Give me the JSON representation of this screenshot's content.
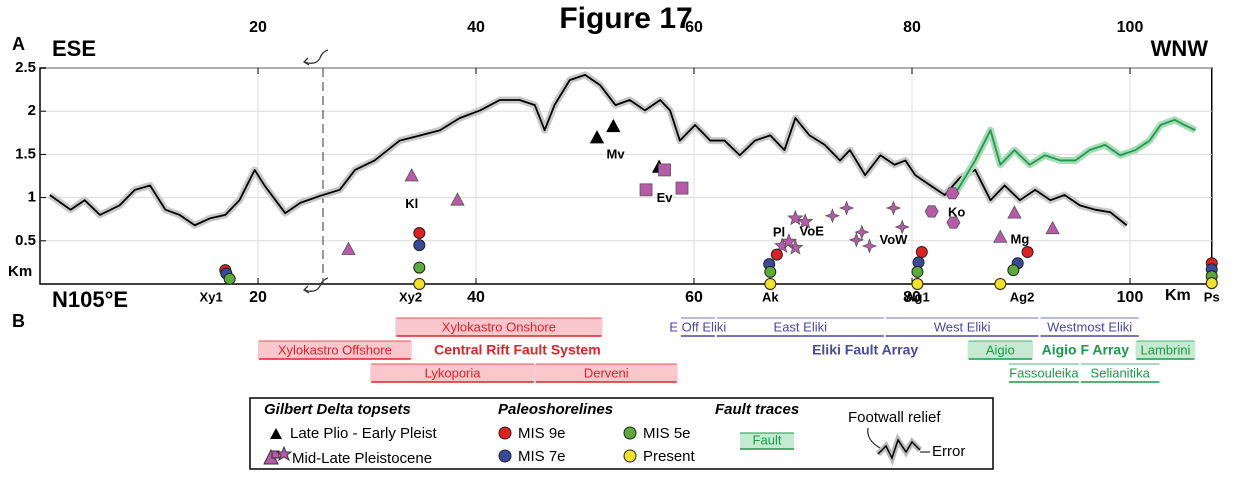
{
  "chart_data": {
    "type": "line",
    "title": "Figure 17",
    "panel_labels": [
      "A",
      "B"
    ],
    "top_left": "ESE",
    "top_right": "WNW",
    "bottom_left": "N105°E",
    "x_unit": "Km",
    "y_unit": "Km",
    "xlim": [
      0,
      107.5
    ],
    "ylim": [
      0,
      2.5
    ],
    "xticks": [
      20,
      40,
      60,
      80,
      100
    ],
    "yticks": [
      0.5,
      1,
      1.5,
      2,
      2.5
    ],
    "grid": true,
    "series": [
      {
        "color": "#000000",
        "x": [
          0.9,
          2.8,
          4.1,
          5.5,
          7.3,
          8.7,
          10.1,
          11.5,
          12.8,
          14.2,
          15.6,
          17.0,
          18.3,
          19.7,
          20.6,
          22.5,
          23.9,
          25.7,
          27.5,
          28.9,
          30.7,
          33.0,
          34.9,
          36.7,
          38.5,
          40.4,
          42.2,
          44.0,
          45.4,
          46.3,
          47.2,
          48.6,
          50.0,
          51.4,
          52.8,
          54.1,
          55.5,
          56.9,
          57.8,
          58.7,
          60.1,
          61.5,
          62.8,
          64.2,
          65.6,
          67.0,
          68.3,
          69.3,
          70.6,
          72.0,
          73.4,
          74.3,
          75.7,
          77.1,
          78.4,
          79.4,
          80.3,
          81.7,
          83.0,
          84.4,
          85.8,
          87.2,
          88.5,
          89.9,
          91.3,
          92.7,
          94.0,
          95.4,
          96.8,
          98.2,
          99.7
        ],
        "values": [
          1.03,
          0.86,
          0.97,
          0.8,
          0.91,
          1.09,
          1.14,
          0.86,
          0.8,
          0.68,
          0.76,
          0.8,
          0.97,
          1.32,
          1.14,
          0.82,
          0.94,
          1.02,
          1.09,
          1.32,
          1.43,
          1.66,
          1.72,
          1.78,
          1.92,
          2.01,
          2.13,
          2.13,
          2.07,
          1.78,
          2.07,
          2.36,
          2.42,
          2.3,
          2.07,
          2.13,
          2.01,
          2.13,
          2.01,
          1.66,
          1.84,
          1.66,
          1.66,
          1.49,
          1.66,
          1.72,
          1.55,
          1.92,
          1.72,
          1.61,
          1.43,
          1.55,
          1.26,
          1.49,
          1.38,
          1.43,
          1.26,
          1.14,
          1.03,
          1.23,
          1.32,
          0.97,
          1.14,
          0.97,
          1.09,
          0.97,
          1.03,
          0.91,
          0.86,
          0.83,
          0.68
        ]
      },
      {
        "color": "#1f9a4a",
        "x": [
          83.9,
          85.8,
          87.2,
          88.1,
          89.4,
          90.8,
          92.2,
          93.6,
          95.0,
          96.3,
          97.7,
          99.1,
          100.5,
          101.8,
          102.8,
          104.1,
          105.0,
          106.0
        ],
        "values": [
          1.03,
          1.43,
          1.78,
          1.38,
          1.55,
          1.38,
          1.49,
          1.43,
          1.43,
          1.55,
          1.61,
          1.49,
          1.55,
          1.66,
          1.84,
          1.9,
          1.84,
          1.78
        ]
      }
    ],
    "markers": [
      {
        "shape": "triangle",
        "color": "#000000",
        "x": [
          51.1,
          52.6,
          56.8
        ],
        "values": [
          1.69,
          1.82,
          1.35
        ]
      },
      {
        "shape": "triangle",
        "color": "#b65aa9",
        "x": [
          28.3,
          34.1,
          38.3,
          89.4,
          88.1,
          92.9
        ],
        "values": [
          0.4,
          1.25,
          0.97,
          0.82,
          0.54,
          0.64
        ]
      },
      {
        "shape": "square",
        "color": "#b65aa9",
        "x": [
          55.6,
          57.3,
          58.9
        ],
        "values": [
          1.09,
          1.32,
          1.11
        ]
      },
      {
        "shape": "star",
        "color": "#b65aa9",
        "x": [
          69.3,
          70.2,
          68.1,
          69.3,
          68.7
        ],
        "values": [
          0.76,
          0.72,
          0.44,
          0.42,
          0.49
        ]
      },
      {
        "shape": "diamond",
        "color": "#b65aa9",
        "x": [
          72.7,
          74.0,
          75.4,
          74.9,
          76.1,
          78.3,
          79.1
        ],
        "values": [
          0.79,
          0.88,
          0.6,
          0.51,
          0.44,
          0.88,
          0.66
        ]
      },
      {
        "shape": "hexagon",
        "color": "#b65aa9",
        "x": [
          81.8,
          83.7,
          83.8
        ],
        "values": [
          0.84,
          1.05,
          0.71
        ]
      }
    ],
    "shorelines": [
      {
        "name": "MIS 9e",
        "color": "#e02020",
        "x": [
          17.0,
          34.8,
          67.6,
          80.9,
          90.6,
          107.5
        ],
        "values": [
          0.16,
          0.59,
          0.34,
          0.37,
          0.37,
          0.24
        ]
      },
      {
        "name": "MIS 7e",
        "color": "#3a4a9a",
        "x": [
          17.1,
          34.8,
          66.9,
          80.6,
          89.7,
          107.5
        ],
        "values": [
          0.12,
          0.45,
          0.23,
          0.25,
          0.24,
          0.17
        ]
      },
      {
        "name": "MIS 5e",
        "color": "#5aab3a",
        "x": [
          17.4,
          34.8,
          67.0,
          80.5,
          89.3,
          107.5
        ],
        "values": [
          0.06,
          0.19,
          0.14,
          0.14,
          0.16,
          0.09
        ]
      },
      {
        "name": "Present",
        "color": "#f2e226",
        "x": [
          34.8,
          67.0,
          80.5,
          88.1,
          107.5
        ],
        "values": [
          0,
          0,
          0,
          0,
          0.01
        ]
      }
    ],
    "annotations": [
      {
        "text": "Kl",
        "x": 34.1,
        "y": 0.92
      },
      {
        "text": "Mv",
        "x": 52.8,
        "y": 1.49
      },
      {
        "text": "Ev",
        "x": 57.3,
        "y": 0.99
      },
      {
        "text": "Pl",
        "x": 67.8,
        "y": 0.59
      },
      {
        "text": "VoE",
        "x": 70.8,
        "y": 0.6
      },
      {
        "text": "VoW",
        "x": 78.3,
        "y": 0.5
      },
      {
        "text": "Ko",
        "x": 84.1,
        "y": 0.82
      },
      {
        "text": "Mg",
        "x": 89.9,
        "y": 0.51
      }
    ],
    "stations": [
      {
        "text": "Xy1",
        "x": 15.7
      },
      {
        "text": "Xy2",
        "x": 34.0
      },
      {
        "text": "Ak",
        "x": 67.0
      },
      {
        "text": "Ag1",
        "x": 80.5
      },
      {
        "text": "Ag2",
        "x": 90.1
      },
      {
        "text": "Ps",
        "x": 107.5
      }
    ],
    "fault_groups": [
      {
        "name": "Central Rift Fault System",
        "color": "#e4202a",
        "fill": "#f8c8cc",
        "x": 43.8,
        "row": 2
      },
      {
        "name": "Eliki Fault Array",
        "color": "#4a48a0",
        "fill": "#dcdcf0",
        "x": 75.7,
        "row": 2
      },
      {
        "name": "Aigio F Array",
        "color": "#1a9a48",
        "fill": "#c5ead2",
        "x": 95.9,
        "row": 2
      }
    ],
    "faults": [
      {
        "text": "Xylokastro Onshore",
        "start": 32.6,
        "end": 51.6,
        "row": 1,
        "group": 0,
        "filled": true
      },
      {
        "text": "Xylokastro Offshore",
        "start": 20.0,
        "end": 34.1,
        "row": 2,
        "group": 0,
        "filled": true
      },
      {
        "text": "Lykoporia",
        "start": 30.3,
        "end": 45.4,
        "row": 3,
        "group": 0,
        "filled": true
      },
      {
        "text": "Derveni",
        "start": 45.4,
        "end": 58.5,
        "row": 3,
        "group": 0,
        "filled": true
      },
      {
        "text": "E Off Eliki",
        "start": 58.7,
        "end": 62.0,
        "row": 1,
        "group": 1,
        "filled": false
      },
      {
        "text": "East Eliki",
        "start": 62.0,
        "end": 77.5,
        "row": 1,
        "group": 1,
        "filled": false
      },
      {
        "text": "West Eliki",
        "start": 77.5,
        "end": 91.7,
        "row": 1,
        "group": 1,
        "filled": false
      },
      {
        "text": "Westmost Eliki",
        "start": 91.7,
        "end": 100.9,
        "row": 1,
        "group": 1,
        "filled": false
      },
      {
        "text": "Aigio",
        "start": 85.1,
        "end": 91.1,
        "row": 2,
        "group": 2,
        "filled": true
      },
      {
        "text": "Lambrini",
        "start": 100.5,
        "end": 106.0,
        "row": 2,
        "group": 2,
        "filled": true
      },
      {
        "text": "Fassouleika",
        "start": 88.8,
        "end": 95.4,
        "row": 3,
        "group": 2,
        "filled": false
      },
      {
        "text": "Selianitika",
        "start": 95.4,
        "end": 102.8,
        "row": 3,
        "group": 2,
        "filled": false
      }
    ],
    "legend": {
      "topsets_title": "Gilbert Delta topsets",
      "late": "Late Plio - Early Pleist",
      "mid": "Mid-Late Pleistocene",
      "shorelines_title": "Paleoshorelines",
      "faults_title": "Fault traces",
      "fault_sample": "Fault",
      "relief": "Footwall relief",
      "error": "Error"
    }
  }
}
